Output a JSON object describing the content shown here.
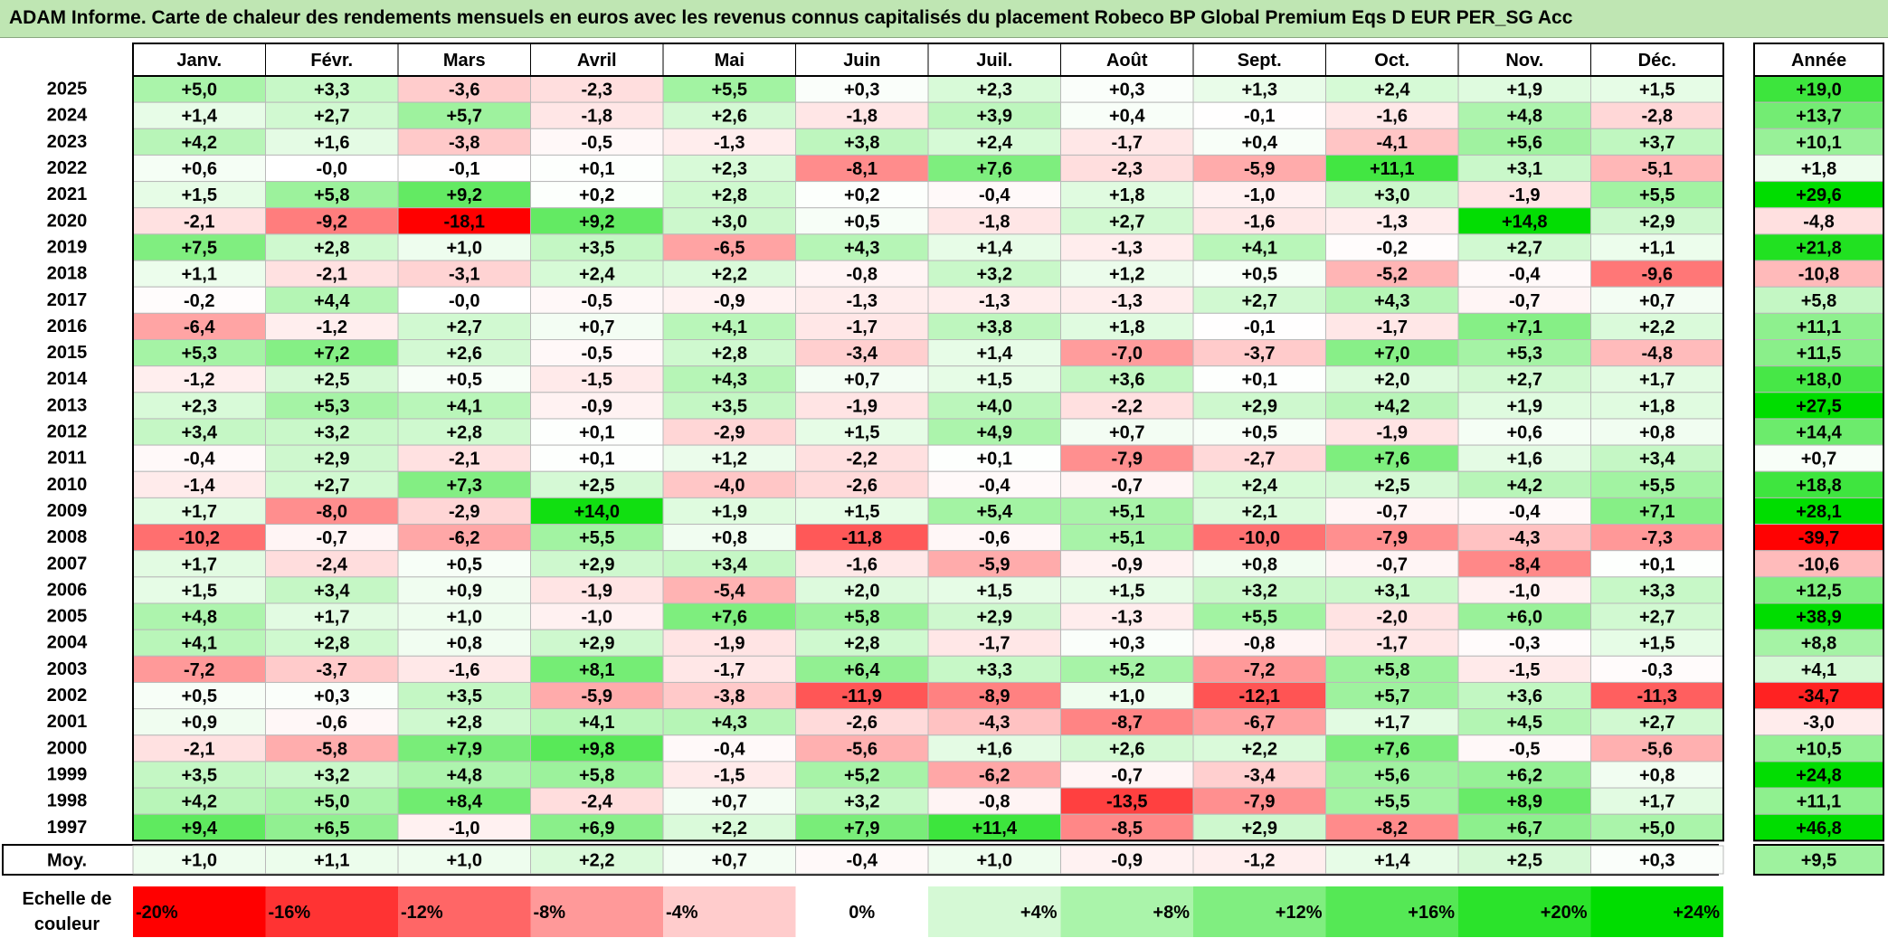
{
  "title": "ADAM Informe. Carte de chaleur des rendements mensuels en euros avec les revenus connus capitalisés du placement Robeco BP Global Premium Eqs D EUR PER_SG Acc",
  "chart_data": {
    "type": "heatmap",
    "title": "ADAM Informe. Carte de chaleur des rendements mensuels en euros avec les revenus connus capitalisés du placement Robeco BP Global Premium Eqs D EUR PER_SG Acc",
    "months": [
      "Janv.",
      "Févr.",
      "Mars",
      "Avril",
      "Mai",
      "Juin",
      "Juil.",
      "Août",
      "Sept.",
      "Oct.",
      "Nov.",
      "Déc."
    ],
    "year_column_label": "Année",
    "average_row_label": "Moy.",
    "rows": [
      {
        "year": "2025",
        "values": [
          "+5,0",
          "+3,3",
          "-3,6",
          "-2,3",
          "+5,5",
          "+0,3",
          "+2,3",
          "+0,3",
          "+1,3",
          "+2,4",
          "+1,9",
          "+1,5"
        ],
        "annual": "+19,0"
      },
      {
        "year": "2024",
        "values": [
          "+1,4",
          "+2,7",
          "+5,7",
          "-1,8",
          "+2,6",
          "-1,8",
          "+3,9",
          "+0,4",
          "-0,1",
          "-1,6",
          "+4,8",
          "-2,8"
        ],
        "annual": "+13,7"
      },
      {
        "year": "2023",
        "values": [
          "+4,2",
          "+1,6",
          "-3,8",
          "-0,5",
          "-1,3",
          "+3,8",
          "+2,4",
          "-1,7",
          "+0,4",
          "-4,1",
          "+5,6",
          "+3,7"
        ],
        "annual": "+10,1"
      },
      {
        "year": "2022",
        "values": [
          "+0,6",
          "-0,0",
          "-0,1",
          "+0,1",
          "+2,3",
          "-8,1",
          "+7,6",
          "-2,3",
          "-5,9",
          "+11,1",
          "+3,1",
          "-5,1"
        ],
        "annual": "+1,8"
      },
      {
        "year": "2021",
        "values": [
          "+1,5",
          "+5,8",
          "+9,2",
          "+0,2",
          "+2,8",
          "+0,2",
          "-0,4",
          "+1,8",
          "-1,0",
          "+3,0",
          "-1,9",
          "+5,5"
        ],
        "annual": "+29,6"
      },
      {
        "year": "2020",
        "values": [
          "-2,1",
          "-9,2",
          "-18,1",
          "+9,2",
          "+3,0",
          "+0,5",
          "-1,8",
          "+2,7",
          "-1,6",
          "-1,3",
          "+14,8",
          "+2,9"
        ],
        "annual": "-4,8"
      },
      {
        "year": "2019",
        "values": [
          "+7,5",
          "+2,8",
          "+1,0",
          "+3,5",
          "-6,5",
          "+4,3",
          "+1,4",
          "-1,3",
          "+4,1",
          "-0,2",
          "+2,7",
          "+1,1"
        ],
        "annual": "+21,8"
      },
      {
        "year": "2018",
        "values": [
          "+1,1",
          "-2,1",
          "-3,1",
          "+2,4",
          "+2,2",
          "-0,8",
          "+3,2",
          "+1,2",
          "+0,5",
          "-5,2",
          "-0,4",
          "-9,6"
        ],
        "annual": "-10,8"
      },
      {
        "year": "2017",
        "values": [
          "-0,2",
          "+4,4",
          "-0,0",
          "-0,5",
          "-0,9",
          "-1,3",
          "-1,3",
          "-1,3",
          "+2,7",
          "+4,3",
          "-0,7",
          "+0,7"
        ],
        "annual": "+5,8"
      },
      {
        "year": "2016",
        "values": [
          "-6,4",
          "-1,2",
          "+2,7",
          "+0,7",
          "+4,1",
          "-1,7",
          "+3,8",
          "+1,8",
          "-0,1",
          "-1,7",
          "+7,1",
          "+2,2"
        ],
        "annual": "+11,1"
      },
      {
        "year": "2015",
        "values": [
          "+5,3",
          "+7,2",
          "+2,6",
          "-0,5",
          "+2,8",
          "-3,4",
          "+1,4",
          "-7,0",
          "-3,7",
          "+7,0",
          "+5,3",
          "-4,8"
        ],
        "annual": "+11,5"
      },
      {
        "year": "2014",
        "values": [
          "-1,2",
          "+2,5",
          "+0,5",
          "-1,5",
          "+4,3",
          "+0,7",
          "+1,5",
          "+3,6",
          "+0,1",
          "+2,0",
          "+2,7",
          "+1,7"
        ],
        "annual": "+18,0"
      },
      {
        "year": "2013",
        "values": [
          "+2,3",
          "+5,3",
          "+4,1",
          "-0,9",
          "+3,5",
          "-1,9",
          "+4,0",
          "-2,2",
          "+2,9",
          "+4,2",
          "+1,9",
          "+1,8"
        ],
        "annual": "+27,5"
      },
      {
        "year": "2012",
        "values": [
          "+3,4",
          "+3,2",
          "+2,8",
          "+0,1",
          "-2,9",
          "+1,5",
          "+4,9",
          "+0,7",
          "+0,5",
          "-1,9",
          "+0,6",
          "+0,8"
        ],
        "annual": "+14,4"
      },
      {
        "year": "2011",
        "values": [
          "-0,4",
          "+2,9",
          "-2,1",
          "+0,1",
          "+1,2",
          "-2,2",
          "+0,1",
          "-7,9",
          "-2,7",
          "+7,6",
          "+1,6",
          "+3,4"
        ],
        "annual": "+0,7"
      },
      {
        "year": "2010",
        "values": [
          "-1,4",
          "+2,7",
          "+7,3",
          "+2,5",
          "-4,0",
          "-2,6",
          "-0,4",
          "-0,7",
          "+2,4",
          "+2,5",
          "+4,2",
          "+5,5"
        ],
        "annual": "+18,8"
      },
      {
        "year": "2009",
        "values": [
          "+1,7",
          "-8,0",
          "-2,9",
          "+14,0",
          "+1,9",
          "+1,5",
          "+5,4",
          "+5,1",
          "+2,1",
          "-0,7",
          "-0,4",
          "+7,1"
        ],
        "annual": "+28,1"
      },
      {
        "year": "2008",
        "values": [
          "-10,2",
          "-0,7",
          "-6,2",
          "+5,5",
          "+0,8",
          "-11,8",
          "-0,6",
          "+5,1",
          "-10,0",
          "-7,9",
          "-4,3",
          "-7,3"
        ],
        "annual": "-39,7"
      },
      {
        "year": "2007",
        "values": [
          "+1,7",
          "-2,4",
          "+0,5",
          "+2,9",
          "+3,4",
          "-1,6",
          "-5,9",
          "-0,9",
          "+0,8",
          "-0,7",
          "-8,4",
          "+0,1"
        ],
        "annual": "-10,6"
      },
      {
        "year": "2006",
        "values": [
          "+1,5",
          "+3,4",
          "+0,9",
          "-1,9",
          "-5,4",
          "+2,0",
          "+1,5",
          "+1,5",
          "+3,2",
          "+3,1",
          "-1,0",
          "+3,3"
        ],
        "annual": "+12,5"
      },
      {
        "year": "2005",
        "values": [
          "+4,8",
          "+1,7",
          "+1,0",
          "-1,0",
          "+7,6",
          "+5,8",
          "+2,9",
          "-1,3",
          "+5,5",
          "-2,0",
          "+6,0",
          "+2,7"
        ],
        "annual": "+38,9"
      },
      {
        "year": "2004",
        "values": [
          "+4,1",
          "+2,8",
          "+0,8",
          "+2,9",
          "-1,9",
          "+2,8",
          "-1,7",
          "+0,3",
          "-0,8",
          "-1,7",
          "-0,3",
          "+1,5"
        ],
        "annual": "+8,8"
      },
      {
        "year": "2003",
        "values": [
          "-7,2",
          "-3,7",
          "-1,6",
          "+8,1",
          "-1,7",
          "+6,4",
          "+3,3",
          "+5,2",
          "-7,2",
          "+5,8",
          "-1,5",
          "-0,3"
        ],
        "annual": "+4,1"
      },
      {
        "year": "2002",
        "values": [
          "+0,5",
          "+0,3",
          "+3,5",
          "-5,9",
          "-3,8",
          "-11,9",
          "-8,9",
          "+1,0",
          "-12,1",
          "+5,7",
          "+3,6",
          "-11,3"
        ],
        "annual": "-34,7"
      },
      {
        "year": "2001",
        "values": [
          "+0,9",
          "-0,6",
          "+2,8",
          "+4,1",
          "+4,3",
          "-2,6",
          "-4,3",
          "-8,7",
          "-6,7",
          "+1,7",
          "+4,5",
          "+2,7"
        ],
        "annual": "-3,0"
      },
      {
        "year": "2000",
        "values": [
          "-2,1",
          "-5,8",
          "+7,9",
          "+9,8",
          "-0,4",
          "-5,6",
          "+1,6",
          "+2,6",
          "+2,2",
          "+7,6",
          "-0,5",
          "-5,6"
        ],
        "annual": "+10,5"
      },
      {
        "year": "1999",
        "values": [
          "+3,5",
          "+3,2",
          "+4,8",
          "+5,8",
          "-1,5",
          "+5,2",
          "-6,2",
          "-0,7",
          "-3,4",
          "+5,6",
          "+6,2",
          "+0,8"
        ],
        "annual": "+24,8"
      },
      {
        "year": "1998",
        "values": [
          "+4,2",
          "+5,0",
          "+8,4",
          "-2,4",
          "+0,7",
          "+3,2",
          "-0,8",
          "-13,5",
          "-7,9",
          "+5,5",
          "+8,9",
          "+1,7"
        ],
        "annual": "+11,1"
      },
      {
        "year": "1997",
        "values": [
          "+9,4",
          "+6,5",
          "-1,0",
          "+6,9",
          "+2,2",
          "+7,9",
          "+11,4",
          "-8,5",
          "+2,9",
          "-8,2",
          "+6,7",
          "+5,0"
        ],
        "annual": "+46,8"
      }
    ],
    "average": {
      "values": [
        "+1,0",
        "+1,1",
        "+1,0",
        "+2,2",
        "+0,7",
        "-0,4",
        "+1,0",
        "-0,9",
        "-1,2",
        "+1,4",
        "+2,5",
        "+0,3"
      ],
      "annual": "+9,5"
    },
    "color_scale": {
      "label_line1": "Echelle de",
      "label_line2": "couleur",
      "steps": [
        {
          "label": "-20%",
          "value": -20
        },
        {
          "label": "-16%",
          "value": -16
        },
        {
          "label": "-12%",
          "value": -12
        },
        {
          "label": "-8%",
          "value": -8
        },
        {
          "label": "-4%",
          "value": -4
        },
        {
          "label": "0%",
          "value": 0
        },
        {
          "label": "+4%",
          "value": 4
        },
        {
          "label": "+8%",
          "value": 8
        },
        {
          "label": "+12%",
          "value": 12
        },
        {
          "label": "+16%",
          "value": 16
        },
        {
          "label": "+20%",
          "value": 20
        },
        {
          "label": "+24%",
          "value": 24
        }
      ],
      "negative_color": "#ff0000",
      "positive_color": "#00dd00",
      "neutral_color": "#ffffff"
    }
  }
}
